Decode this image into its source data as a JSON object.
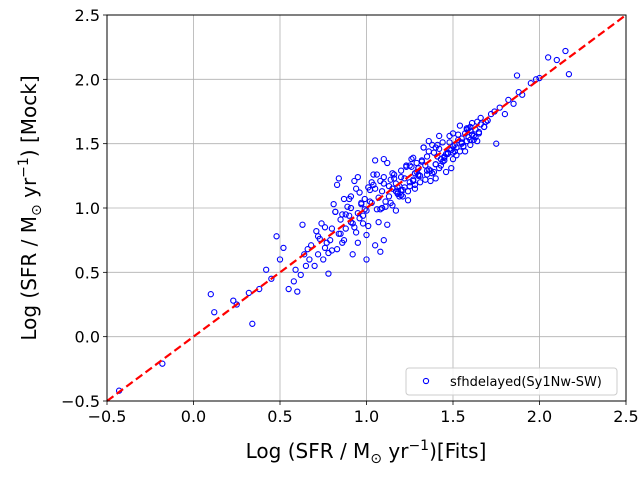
{
  "chart_data": {
    "type": "scatter",
    "xlim": [
      -0.5,
      2.5
    ],
    "ylim": [
      -0.5,
      2.5
    ],
    "xticks": [
      "−0.5",
      "0.0",
      "0.5",
      "1.0",
      "1.5",
      "2.0",
      "2.5"
    ],
    "yticks": [
      "−0.5",
      "0.0",
      "0.5",
      "1.0",
      "1.5",
      "2.0",
      "2.5"
    ],
    "xlabel": {
      "pre": "Log (SFR / M",
      "sub": "⊙",
      "mid": " yr",
      "sup": "−1",
      "post": ")[Fits]"
    },
    "ylabel": {
      "pre": "Log (SFR / M",
      "sub": "⊙",
      "mid": " yr",
      "sup": "−1",
      "post": ") [Mock]"
    },
    "grid": true,
    "legend_position": "lower-right",
    "reference_line": {
      "x": [
        -0.5,
        2.5
      ],
      "y": [
        -0.5,
        2.5
      ],
      "color": "#ff0000",
      "style": "dashed"
    },
    "series": [
      {
        "name": "sfhdelayed(Sy1Nw-SW)",
        "color": "#0000ff",
        "marker": "open-circle",
        "x": [
          -0.43,
          -0.18,
          0.1,
          0.12,
          0.23,
          0.25,
          0.32,
          0.34,
          0.38,
          0.42,
          0.45,
          0.48,
          0.5,
          0.52,
          0.55,
          0.58,
          0.59,
          0.6,
          0.62,
          0.63,
          0.64,
          0.65,
          0.66,
          0.67,
          0.68,
          0.7,
          0.71,
          0.72,
          0.73,
          0.74,
          0.75,
          0.76,
          0.77,
          0.78,
          0.79,
          0.8,
          0.81,
          0.82,
          0.83,
          0.84,
          0.85,
          0.86,
          0.87,
          0.88,
          0.89,
          0.9,
          0.91,
          0.92,
          0.93,
          0.94,
          0.95,
          0.96,
          0.97,
          0.98,
          0.99,
          1.0,
          1.01,
          1.02,
          1.03,
          1.04,
          1.05,
          1.06,
          1.07,
          1.08,
          1.09,
          1.1,
          1.11,
          1.12,
          1.13,
          1.14,
          1.15,
          1.16,
          1.17,
          1.18,
          1.19,
          1.2,
          1.21,
          1.22,
          1.23,
          1.24,
          1.25,
          1.26,
          1.27,
          1.28,
          1.29,
          1.3,
          1.31,
          1.32,
          1.33,
          1.34,
          1.35,
          1.36,
          1.37,
          1.38,
          1.39,
          1.4,
          1.41,
          1.42,
          1.43,
          1.44,
          1.45,
          1.46,
          1.47,
          1.48,
          1.49,
          1.5,
          1.51,
          1.52,
          1.53,
          1.54,
          1.55,
          1.56,
          1.57,
          1.58,
          1.59,
          1.6,
          1.61,
          1.62,
          1.63,
          1.64,
          1.65,
          1.66,
          1.68,
          1.7,
          1.72,
          1.74,
          1.75,
          1.77,
          1.8,
          1.82,
          1.85,
          1.87,
          1.88,
          1.9,
          1.95,
          1.98,
          2.0,
          2.05,
          2.1,
          2.15,
          2.17,
          0.88,
          0.92,
          0.95,
          1.0,
          1.05,
          1.08,
          1.1,
          0.85,
          0.9,
          0.95,
          1.02,
          1.06,
          1.12,
          1.15,
          1.18,
          1.2,
          1.25,
          1.28,
          1.3,
          1.35,
          1.4,
          1.42,
          1.45,
          1.5,
          1.55,
          1.58,
          1.6,
          1.62,
          1.65,
          1.7,
          0.83,
          0.87,
          0.93,
          0.97,
          1.03,
          1.07,
          1.13,
          1.17,
          1.22,
          1.27,
          1.32,
          1.37,
          1.43,
          1.47,
          1.52,
          1.57,
          1.63,
          1.68,
          0.78,
          0.84,
          0.91,
          0.99,
          1.04,
          1.11,
          1.16,
          1.21,
          1.26,
          1.31,
          1.36,
          1.41,
          1.46,
          1.51,
          1.56,
          1.61,
          1.66,
          0.8,
          0.86,
          0.94,
          1.01,
          1.09,
          1.14,
          1.19,
          1.24,
          1.29,
          1.34,
          1.39,
          1.44,
          1.49,
          1.54,
          1.59,
          1.64,
          1.69,
          1.0,
          1.05,
          1.1,
          1.15,
          1.2,
          1.25,
          1.3,
          1.35,
          1.4,
          1.45,
          1.5,
          1.55,
          1.6,
          1.1,
          1.2,
          1.3,
          1.4,
          1.5,
          1.6,
          0.72,
          0.76,
          0.82,
          0.96,
          1.08,
          1.18,
          1.28,
          1.38,
          1.48,
          1.58,
          1.36,
          1.42,
          1.48,
          1.53,
          1.33,
          1.27,
          1.23,
          1.17,
          0.98,
          0.91
        ],
        "y": [
          -0.42,
          -0.21,
          0.33,
          0.19,
          0.28,
          0.25,
          0.34,
          0.1,
          0.37,
          0.52,
          0.45,
          0.78,
          0.6,
          0.69,
          0.37,
          0.43,
          0.52,
          0.35,
          0.48,
          0.87,
          0.64,
          0.55,
          0.68,
          0.6,
          0.71,
          0.55,
          0.82,
          0.64,
          0.76,
          0.88,
          0.6,
          0.85,
          0.73,
          0.49,
          0.75,
          0.84,
          1.03,
          0.97,
          1.18,
          1.23,
          0.8,
          0.95,
          1.07,
          0.84,
          1.01,
          0.94,
          1.09,
          0.64,
          1.21,
          1.15,
          0.96,
          1.12,
          1.04,
          0.88,
          1.07,
          0.6,
          1.16,
          1.14,
          1.2,
          1.26,
          1.37,
          0.99,
          1.08,
          1.21,
          1.13,
          1.19,
          1.01,
          0.87,
          1.17,
          1.22,
          1.15,
          1.23,
          0.98,
          1.11,
          1.09,
          1.29,
          1.14,
          1.23,
          1.33,
          1.06,
          1.17,
          1.38,
          1.21,
          1.27,
          1.28,
          1.31,
          1.2,
          1.36,
          1.47,
          1.33,
          1.26,
          1.44,
          1.21,
          1.49,
          1.28,
          1.34,
          1.4,
          1.46,
          1.38,
          1.51,
          1.37,
          1.28,
          1.43,
          1.56,
          1.45,
          1.58,
          1.49,
          1.41,
          1.53,
          1.64,
          1.51,
          1.48,
          1.58,
          1.62,
          1.55,
          1.6,
          1.66,
          1.53,
          1.61,
          1.67,
          1.58,
          1.65,
          1.63,
          1.68,
          1.73,
          1.75,
          1.5,
          1.78,
          1.73,
          1.84,
          1.81,
          2.03,
          1.9,
          1.88,
          1.97,
          2.0,
          2.01,
          2.17,
          2.15,
          2.22,
          2.04,
          0.95,
          0.88,
          0.73,
          0.79,
          0.71,
          0.66,
          0.75,
          0.91,
          1.07,
          1.24,
          1.05,
          1.26,
          1.35,
          1.27,
          1.16,
          1.24,
          1.33,
          1.18,
          1.31,
          1.4,
          1.23,
          1.31,
          1.39,
          1.48,
          1.54,
          1.61,
          1.49,
          1.56,
          1.59,
          1.68,
          0.68,
          0.75,
          0.85,
          1.03,
          1.04,
          0.89,
          1.09,
          1.13,
          1.16,
          1.22,
          1.37,
          1.29,
          1.33,
          1.42,
          1.47,
          1.44,
          1.55,
          1.63,
          0.65,
          0.8,
          0.89,
          0.99,
          1.18,
          1.05,
          1.26,
          1.09,
          1.32,
          1.25,
          1.3,
          1.49,
          1.42,
          1.44,
          1.48,
          1.57,
          1.7,
          0.67,
          0.73,
          0.81,
          0.86,
          1.0,
          1.04,
          1.17,
          1.13,
          1.35,
          1.22,
          1.43,
          1.36,
          1.31,
          1.44,
          1.62,
          1.52,
          1.67,
          0.98,
          1.15,
          1.24,
          1.02,
          1.14,
          1.2,
          1.25,
          1.29,
          1.34,
          1.4,
          1.43,
          1.5,
          1.53,
          1.38,
          1.1,
          1.26,
          1.47,
          1.38,
          1.63,
          0.78,
          0.69,
          0.97,
          0.92,
          0.99,
          1.12,
          1.15,
          1.27,
          1.46,
          1.52,
          1.52,
          1.56,
          1.51,
          1.57,
          1.47,
          1.39,
          1.32,
          1.19,
          0.94,
          1.0
        ]
      }
    ]
  }
}
